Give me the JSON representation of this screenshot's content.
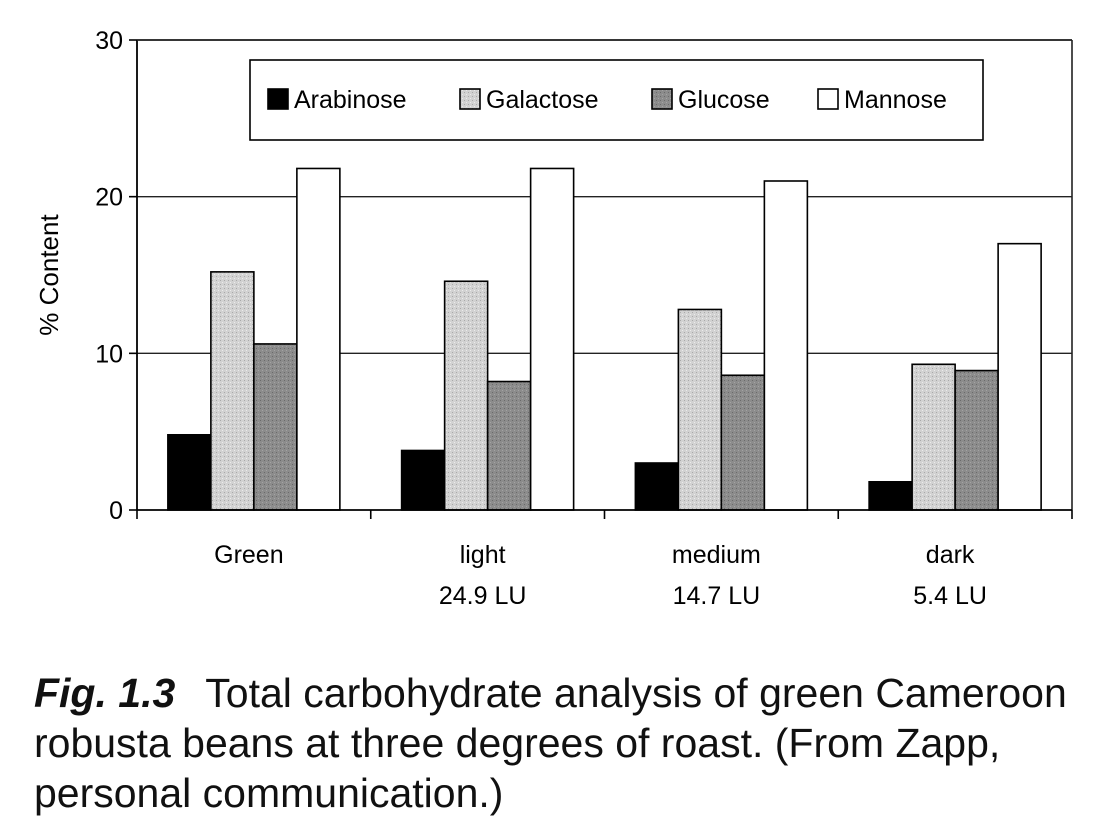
{
  "chart_data": {
    "type": "bar",
    "categories": [
      "Green",
      "light",
      "medium",
      "dark"
    ],
    "category_sublabels": [
      "",
      "24.9 LU",
      "14.7 LU",
      "5.4 LU"
    ],
    "series": [
      {
        "name": "Arabinose",
        "values": [
          4.8,
          3.8,
          3.0,
          1.8
        ],
        "color": "#000000"
      },
      {
        "name": "Galactose",
        "values": [
          15.2,
          14.6,
          12.8,
          9.3
        ],
        "color": "#cccccc"
      },
      {
        "name": "Glucose",
        "values": [
          10.6,
          8.2,
          8.6,
          8.9
        ],
        "color": "#8a8a8a"
      },
      {
        "name": "Mannose",
        "values": [
          21.8,
          21.8,
          21.0,
          17.0
        ],
        "color": "#ffffff"
      }
    ],
    "title": "",
    "xlabel": "",
    "ylabel": "% Content",
    "ylim": [
      0,
      30
    ],
    "yticks": [
      0,
      10,
      20,
      30
    ],
    "grid": true,
    "legend_position": "top"
  },
  "caption": {
    "label": "Fig. 1.3",
    "text": "Total carbohydrate analysis of green Cameroon robusta beans at three degrees of roast. (From Zapp, personal communication.)"
  }
}
